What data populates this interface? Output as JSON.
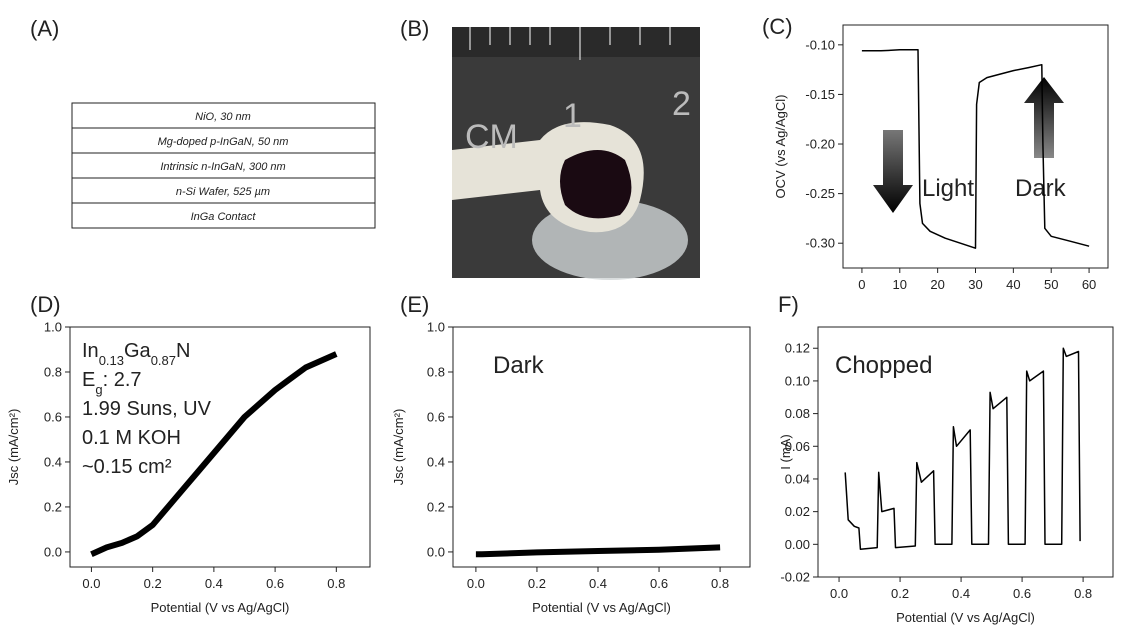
{
  "layer_stack": {
    "label": "(A)",
    "layers": [
      "NiO, 30 nm",
      "Mg-doped p-InGaN, 50 nm",
      "Intrinsic n-InGaN, 300 nm",
      "n-Si Wafer, 525 µm",
      "InGa Contact"
    ]
  },
  "photo": {
    "label": "(B)",
    "ruler_labels": [
      "CM",
      "1",
      "2"
    ]
  },
  "chart_data": [
    {
      "type": "line",
      "label": "(C)",
      "y_label": "OCV (vs Ag/AgCl)",
      "annotations": [
        "Light",
        "Dark"
      ],
      "x": [
        0,
        5,
        10,
        14.8,
        15.3,
        16,
        18,
        22,
        26,
        30,
        30.3,
        31,
        33,
        36,
        40,
        44,
        47.5,
        47.8,
        48.3,
        50,
        55,
        60
      ],
      "series": [
        {
          "color": "#000000",
          "values": [
            -0.106,
            -0.106,
            -0.105,
            -0.105,
            -0.26,
            -0.28,
            -0.288,
            -0.295,
            -0.3,
            -0.305,
            -0.16,
            -0.138,
            -0.133,
            -0.13,
            -0.126,
            -0.123,
            -0.12,
            -0.2,
            -0.285,
            -0.293,
            -0.298,
            -0.303
          ]
        }
      ],
      "xlim": [
        -5,
        65
      ],
      "ylim": [
        -0.325,
        -0.08
      ],
      "xticks": [
        0,
        10,
        20,
        30,
        40,
        50,
        60
      ],
      "yticks": [
        {
          "value": -0.1,
          "label": "-0.10"
        },
        -0.15,
        {
          "value": -0.2,
          "label": "-0.20"
        },
        -0.25,
        {
          "value": -0.3,
          "label": "-0.30"
        }
      ]
    },
    {
      "type": "line",
      "label": "(D)",
      "x_label": "Potential (V vs Ag/AgCl)",
      "y_label": "Jsc (mA/cm²)",
      "annotation_lines": [
        [
          {
            "text": "In"
          },
          {
            "text": "0.13",
            "sub": true
          },
          {
            "text": "Ga"
          },
          {
            "text": "0.87",
            "sub": true
          },
          {
            "text": "N"
          }
        ],
        [
          {
            "text": "E"
          },
          {
            "text": "g",
            "sub": true
          },
          {
            "text": ": 2.7"
          }
        ],
        [
          {
            "text": "1.99 Suns, UV"
          }
        ],
        [
          {
            "text": "0.1 M KOH"
          }
        ],
        [
          {
            "text": "~0.15 cm²"
          }
        ]
      ],
      "x": [
        0,
        0.05,
        0.1,
        0.15,
        0.2,
        0.25,
        0.3,
        0.35,
        0.4,
        0.45,
        0.5,
        0.55,
        0.6,
        0.65,
        0.7,
        0.75,
        0.8
      ],
      "series": [
        {
          "color": "#000000",
          "values": [
            -0.01,
            0.02,
            0.04,
            0.07,
            0.12,
            0.2,
            0.28,
            0.36,
            0.44,
            0.52,
            0.6,
            0.66,
            0.72,
            0.77,
            0.82,
            0.85,
            0.88
          ]
        }
      ],
      "xlim": [
        -0.07,
        0.91
      ],
      "ylim": [
        -0.067,
        1.0
      ],
      "xticks": [
        {
          "value": 0,
          "label": "0.0"
        },
        0.2,
        0.4,
        0.6,
        0.8
      ],
      "yticks": [
        {
          "value": 0,
          "label": "0.0"
        },
        0.2,
        0.4,
        0.6,
        0.8,
        {
          "value": 1,
          "label": "1.0"
        }
      ]
    },
    {
      "type": "line",
      "label": "(E)",
      "x_label": "Potential (V vs Ag/AgCl)",
      "y_label": "Jsc (mA/cm²)",
      "annotations": [
        "Dark"
      ],
      "x": [
        0,
        0.02,
        0.2,
        0.4,
        0.6,
        0.8
      ],
      "series": [
        {
          "color": "#000000",
          "values": [
            -0.01,
            -0.01,
            -0.002,
            0.004,
            0.01,
            0.02
          ]
        }
      ],
      "xlim": [
        -0.075,
        0.898
      ],
      "ylim": [
        -0.067,
        1.0
      ],
      "xticks": [
        {
          "value": 0,
          "label": "0.0"
        },
        0.2,
        0.4,
        0.6,
        0.8
      ],
      "yticks": [
        {
          "value": 0,
          "label": "0.0"
        },
        0.2,
        0.4,
        0.6,
        0.8,
        {
          "value": 1,
          "label": "1.0"
        }
      ]
    },
    {
      "type": "line",
      "label": "F)",
      "x_label": "Potential (V vs Ag/AgCl)",
      "y_label": "I (mA)",
      "annotations": [
        "Chopped"
      ],
      "x": [
        0.02,
        0.03,
        0.05,
        0.065,
        0.07,
        0.125,
        0.13,
        0.14,
        0.18,
        0.185,
        0.25,
        0.255,
        0.27,
        0.31,
        0.315,
        0.37,
        0.375,
        0.385,
        0.43,
        0.435,
        0.49,
        0.495,
        0.505,
        0.55,
        0.555,
        0.61,
        0.615,
        0.625,
        0.67,
        0.675,
        0.73,
        0.735,
        0.745,
        0.785,
        0.79
      ],
      "series": [
        {
          "color": "#000000",
          "values": [
            0.044,
            0.015,
            0.011,
            0.01,
            -0.003,
            -0.002,
            0.044,
            0.02,
            0.022,
            -0.002,
            -0.001,
            0.05,
            0.038,
            0.045,
            0.0,
            0.0,
            0.072,
            0.06,
            0.07,
            0.0,
            0.0,
            0.093,
            0.083,
            0.09,
            0.0,
            0.0,
            0.106,
            0.1,
            0.106,
            0.0,
            0.0,
            0.12,
            0.115,
            0.118,
            0.002
          ]
        }
      ],
      "xlim": [
        -0.069,
        0.898
      ],
      "ylim": [
        -0.02,
        0.133
      ],
      "xticks": [
        {
          "value": 0,
          "label": "0.0"
        },
        0.2,
        0.4,
        0.6,
        0.8
      ],
      "yticks": [
        -0.02,
        {
          "value": 0,
          "label": "0.00"
        },
        0.02,
        0.04,
        0.06,
        0.08,
        {
          "value": 0.1,
          "label": "0.10"
        },
        0.12
      ]
    }
  ]
}
